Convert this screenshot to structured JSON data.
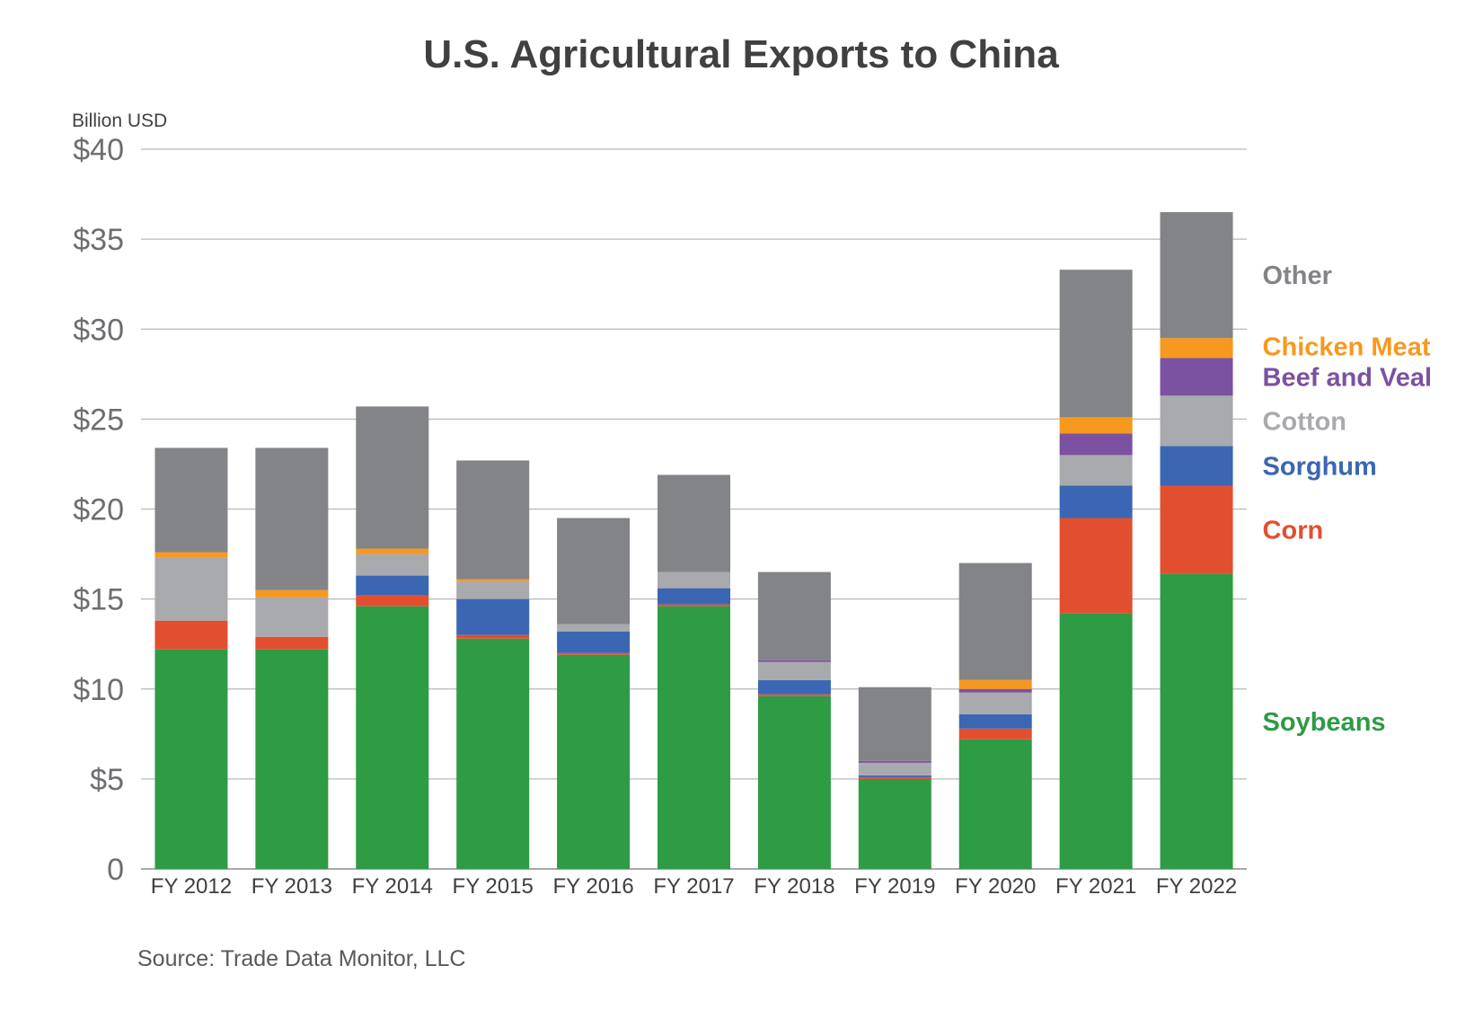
{
  "chart_data": {
    "type": "bar",
    "stacked": true,
    "title": "U.S. Agricultural Exports to China",
    "ylabel": "Billion USD",
    "source": "Source: Trade Data Monitor, LLC",
    "ylim": [
      0,
      40
    ],
    "grid": true,
    "legend_placement": "right",
    "y_ticks": [
      "0",
      "$5",
      "$10",
      "$15",
      "$20",
      "$25",
      "$30",
      "$35",
      "$40"
    ],
    "categories": [
      "FY 2012",
      "FY 2013",
      "FY 2014",
      "FY 2015",
      "FY 2016",
      "FY 2017",
      "FY 2018",
      "FY 2019",
      "FY 2020",
      "FY 2021",
      "FY 2022"
    ],
    "series": [
      {
        "name": "Soybeans",
        "color": "#2e9b45",
        "values": [
          12.2,
          12.2,
          14.6,
          12.8,
          11.9,
          14.6,
          9.6,
          5.0,
          7.2,
          14.2,
          16.4
        ]
      },
      {
        "name": "Corn",
        "color": "#e24f30",
        "values": [
          1.6,
          0.7,
          0.6,
          0.2,
          0.1,
          0.1,
          0.1,
          0.1,
          0.6,
          5.3,
          4.9
        ]
      },
      {
        "name": "Sorghum",
        "color": "#3b66b3",
        "values": [
          0.0,
          0.0,
          1.1,
          2.0,
          1.2,
          0.9,
          0.8,
          0.1,
          0.8,
          1.8,
          2.2
        ]
      },
      {
        "name": "Cotton",
        "color": "#a9aaad",
        "values": [
          3.5,
          2.2,
          1.2,
          1.0,
          0.4,
          0.9,
          1.0,
          0.7,
          1.2,
          1.7,
          2.8
        ]
      },
      {
        "name": "Beef and Veal",
        "color": "#7b51a1",
        "values": [
          0.0,
          0.0,
          0.0,
          0.0,
          0.0,
          0.0,
          0.1,
          0.1,
          0.2,
          1.2,
          2.1
        ]
      },
      {
        "name": "Chicken Meat",
        "color": "#f7991e",
        "values": [
          0.3,
          0.4,
          0.3,
          0.1,
          0.0,
          0.0,
          0.0,
          0.0,
          0.5,
          0.9,
          1.1
        ]
      },
      {
        "name": "Other",
        "color": "#838487",
        "values": [
          5.8,
          7.9,
          7.9,
          6.6,
          5.9,
          5.4,
          4.9,
          4.1,
          6.5,
          8.2,
          7.0
        ]
      }
    ]
  }
}
